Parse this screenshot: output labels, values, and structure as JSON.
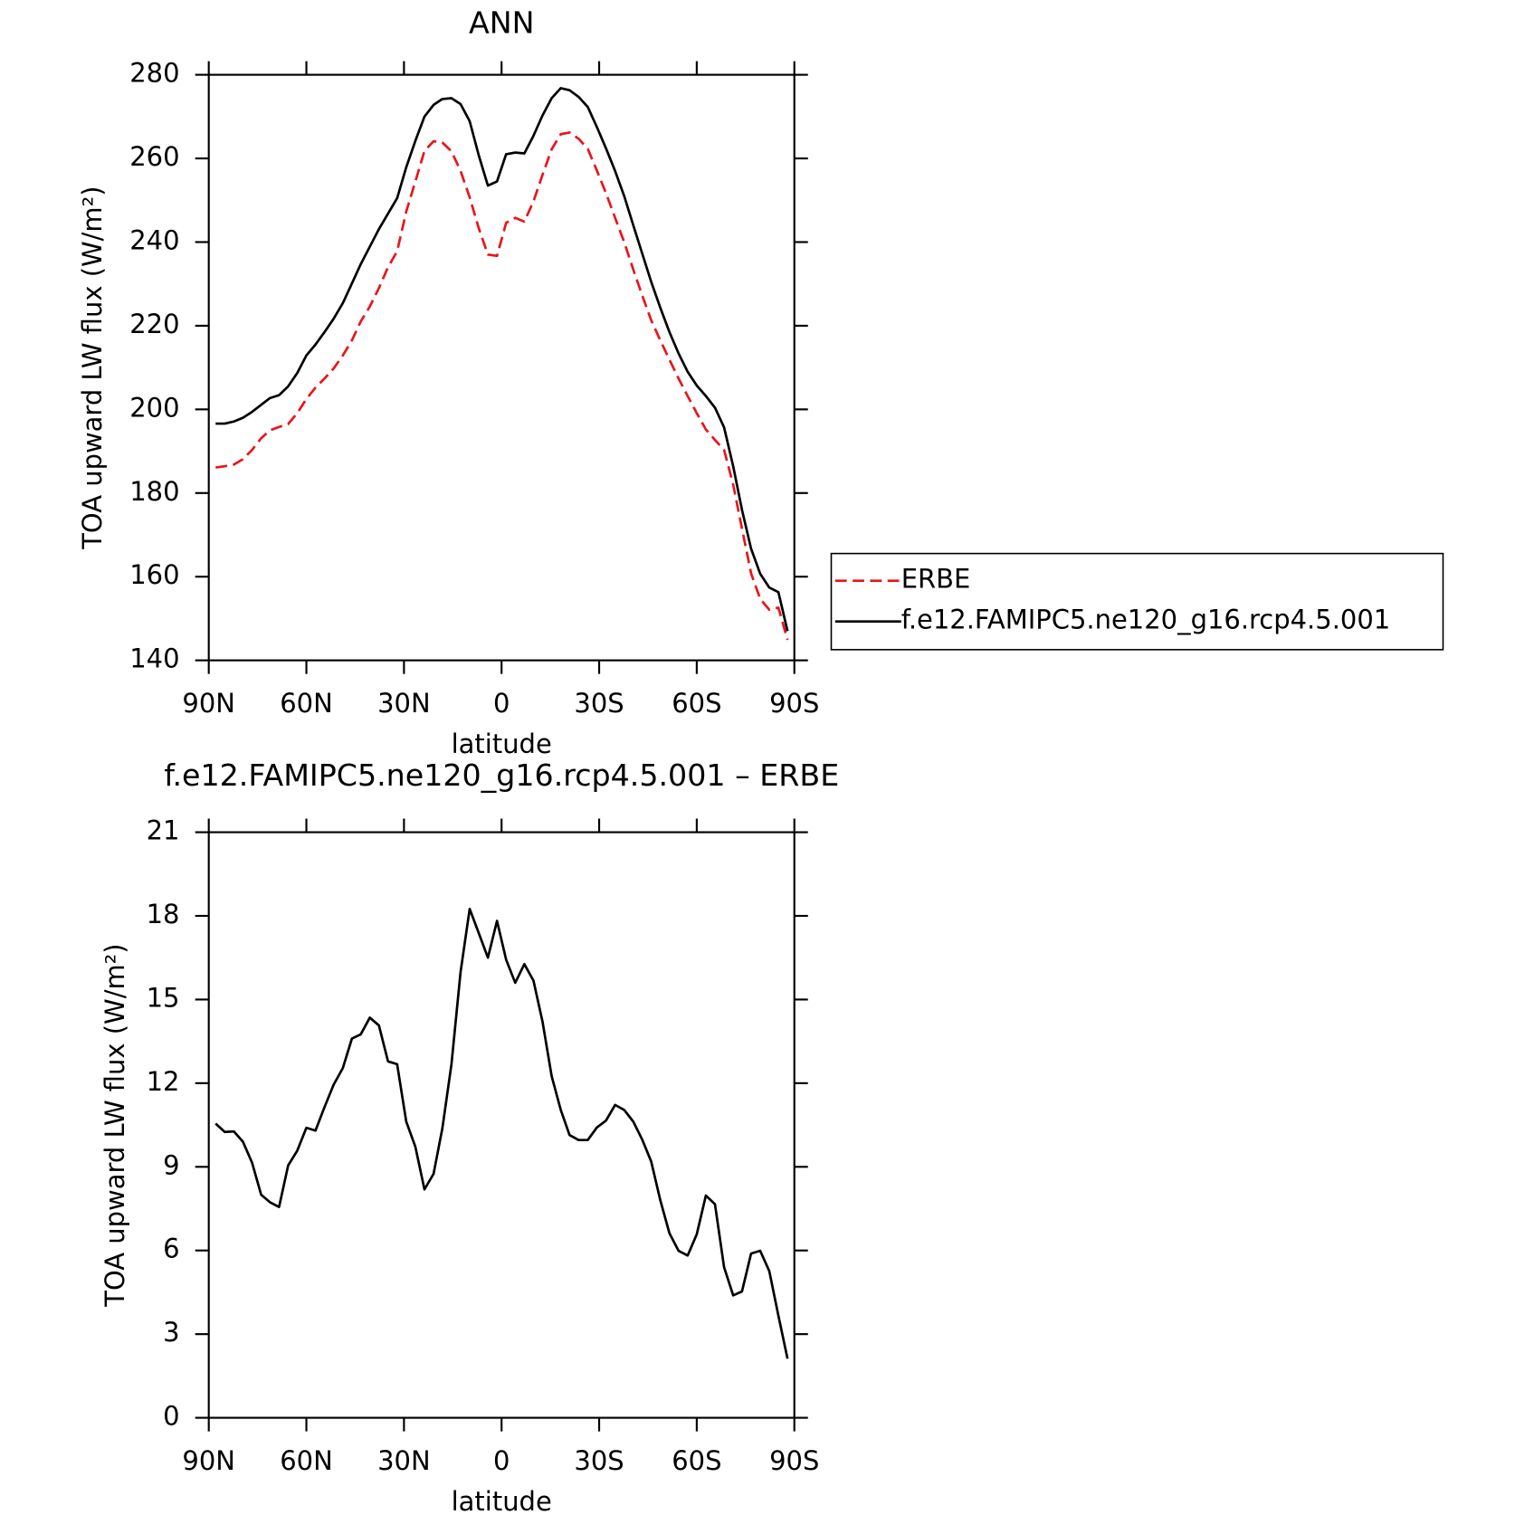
{
  "chart_data": [
    {
      "type": "line",
      "title": "ANN",
      "xlabel": "latitude",
      "ylabel": "TOA upward LW flux (W/m²)",
      "x": [
        87.9,
        85.1,
        82.3,
        79.5,
        76.7,
        73.9,
        71.2,
        68.4,
        65.6,
        62.8,
        60.0,
        57.2,
        54.4,
        51.6,
        48.8,
        46.0,
        43.3,
        40.5,
        37.7,
        34.9,
        32.1,
        29.3,
        26.5,
        23.7,
        20.9,
        18.2,
        15.4,
        12.6,
        9.8,
        7.0,
        4.2,
        1.4,
        -1.4,
        -4.2,
        -7.0,
        -9.8,
        -12.6,
        -15.4,
        -18.2,
        -20.9,
        -23.7,
        -26.5,
        -29.3,
        -32.1,
        -34.9,
        -37.7,
        -40.5,
        -43.3,
        -46.0,
        -48.8,
        -51.6,
        -54.4,
        -57.2,
        -60.0,
        -62.8,
        -65.6,
        -68.4,
        -71.2,
        -73.9,
        -76.7,
        -79.5,
        -82.3,
        -85.1,
        -87.9
      ],
      "series": [
        {
          "name": "ERBE",
          "color": "#e8151b",
          "dash": true,
          "values": [
            186.1,
            186.4,
            186.8,
            188.1,
            190.3,
            193.1,
            195.0,
            195.8,
            196.5,
            199.1,
            202.5,
            205.2,
            207.4,
            209.8,
            212.9,
            216.5,
            221.0,
            224.6,
            229.0,
            234.0,
            237.8,
            247.3,
            254.5,
            261.8,
            264.1,
            263.8,
            261.7,
            257.0,
            250.7,
            243.3,
            237.0,
            236.7,
            244.6,
            245.8,
            244.9,
            249.7,
            256.1,
            262.2,
            265.8,
            266.2,
            264.7,
            262.3,
            257.1,
            251.7,
            245.8,
            240.0,
            233.4,
            227.1,
            221.3,
            216.5,
            211.9,
            207.4,
            203.2,
            199.1,
            195.2,
            192.7,
            190.3,
            182.0,
            171.5,
            160.8,
            154.7,
            152.1,
            152.6,
            144.9
          ]
        },
        {
          "name": "f.e12.FAMIPC5.ne120_g16.rcp4.5.001",
          "color": "#000000",
          "dash": false,
          "values": [
            196.6,
            196.6,
            197.1,
            198.0,
            199.4,
            201.1,
            202.7,
            203.4,
            205.5,
            208.7,
            212.9,
            215.5,
            218.5,
            221.7,
            225.4,
            230.1,
            234.7,
            238.9,
            243.1,
            246.8,
            250.5,
            257.9,
            264.2,
            270.0,
            272.8,
            274.2,
            274.4,
            273.0,
            268.9,
            260.7,
            253.5,
            254.5,
            261.0,
            261.4,
            261.2,
            265.4,
            270.3,
            274.4,
            276.8,
            276.3,
            274.7,
            272.3,
            267.5,
            262.4,
            257.0,
            251.0,
            244.0,
            237.1,
            230.5,
            224.3,
            218.5,
            213.4,
            209.0,
            205.7,
            203.2,
            200.4,
            195.7,
            186.4,
            176.0,
            166.7,
            160.7,
            157.4,
            156.3,
            147.0
          ]
        }
      ],
      "xlim": [
        90,
        -90
      ],
      "xticks": [
        {
          "value": 90,
          "label": "90N"
        },
        {
          "value": 60,
          "label": "60N"
        },
        {
          "value": 30,
          "label": "30N"
        },
        0,
        {
          "value": -30,
          "label": "30S"
        },
        {
          "value": -60,
          "label": "60S"
        },
        {
          "value": -90,
          "label": "90S"
        }
      ],
      "ylim": [
        140,
        280
      ],
      "yticks": [
        140,
        160,
        180,
        200,
        220,
        240,
        260,
        280
      ],
      "legend": "right"
    },
    {
      "type": "line",
      "title": "f.e12.FAMIPC5.ne120_g16.rcp4.5.001 – ERBE",
      "xlabel": "latitude",
      "ylabel": "TOA upward LW flux (W/m²)",
      "x": [
        87.9,
        85.1,
        82.3,
        79.5,
        76.7,
        73.9,
        71.2,
        68.4,
        65.6,
        62.8,
        60.0,
        57.2,
        54.4,
        51.6,
        48.8,
        46.0,
        43.3,
        40.5,
        37.7,
        34.9,
        32.1,
        29.3,
        26.5,
        23.7,
        20.9,
        18.2,
        15.4,
        12.6,
        9.8,
        7.0,
        4.2,
        1.4,
        -1.4,
        -4.2,
        -7.0,
        -9.8,
        -12.6,
        -15.4,
        -18.2,
        -20.9,
        -23.7,
        -26.5,
        -29.3,
        -32.1,
        -34.9,
        -37.7,
        -40.5,
        -43.3,
        -46.0,
        -48.8,
        -51.6,
        -54.4,
        -57.2,
        -60.0,
        -62.8,
        -65.6,
        -68.4,
        -71.2,
        -73.9,
        -76.7,
        -79.5,
        -82.3,
        -85.1,
        -87.9
      ],
      "values": [
        10.55,
        10.25,
        10.27,
        9.9,
        9.15,
        8.0,
        7.73,
        7.56,
        9.05,
        9.58,
        10.4,
        10.3,
        11.15,
        11.95,
        12.54,
        13.6,
        13.75,
        14.35,
        14.07,
        12.78,
        12.68,
        10.62,
        9.72,
        8.19,
        8.75,
        10.38,
        12.68,
        15.99,
        18.25,
        17.38,
        16.5,
        17.82,
        16.43,
        15.6,
        16.27,
        15.68,
        14.2,
        12.25,
        11.04,
        10.14,
        9.96,
        9.96,
        10.41,
        10.66,
        11.22,
        11.04,
        10.62,
        9.96,
        9.19,
        7.8,
        6.62,
        5.99,
        5.82,
        6.58,
        7.97,
        7.66,
        5.4,
        4.39,
        4.53,
        5.89,
        5.99,
        5.26,
        3.66,
        2.12
      ],
      "color": "#000000",
      "xlim": [
        90,
        -90
      ],
      "xticks": [
        {
          "value": 90,
          "label": "90N"
        },
        {
          "value": 60,
          "label": "60N"
        },
        {
          "value": 30,
          "label": "30N"
        },
        0,
        {
          "value": -30,
          "label": "30S"
        },
        {
          "value": -60,
          "label": "60S"
        },
        {
          "value": -90,
          "label": "90S"
        }
      ],
      "ylim": [
        0,
        21
      ],
      "yticks": [
        0,
        3,
        6,
        9,
        12,
        15,
        18,
        21
      ]
    }
  ]
}
